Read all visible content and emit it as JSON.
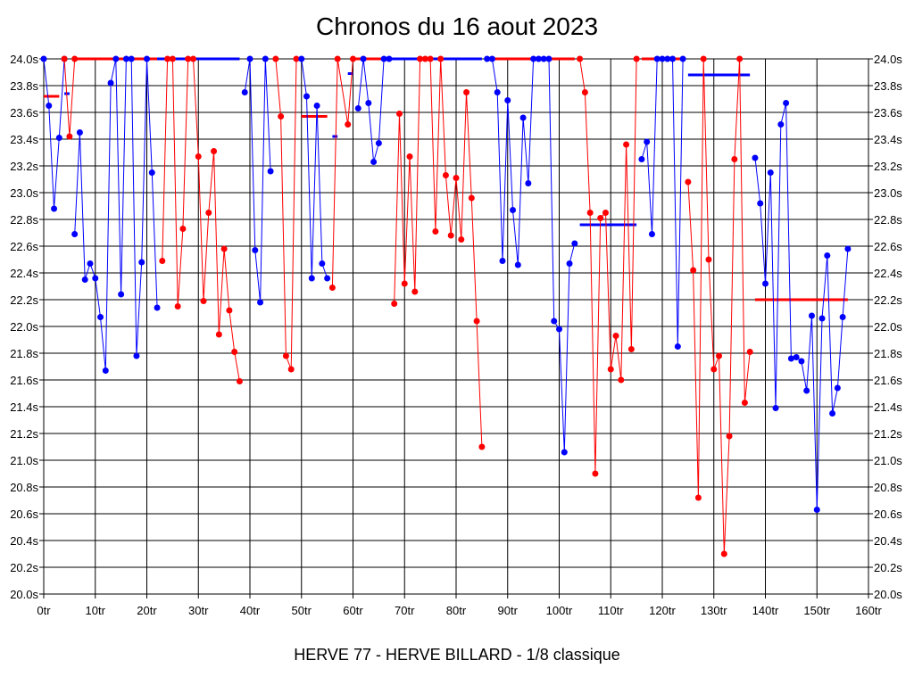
{
  "chart_data": {
    "type": "line",
    "title": "Chronos du 16 aout 2023",
    "caption": "HERVE 77 - HERVE BILLARD - 1/8 classique",
    "x_unit": "tr",
    "y_unit": "s",
    "xlim": [
      0,
      160
    ],
    "ylim": [
      20.0,
      24.0
    ],
    "x_ticks": [
      0,
      10,
      20,
      30,
      40,
      50,
      60,
      70,
      80,
      90,
      100,
      110,
      120,
      130,
      140,
      150,
      160
    ],
    "y_ticks": [
      20.0,
      20.2,
      20.4,
      20.6,
      20.8,
      21.0,
      21.2,
      21.4,
      21.6,
      21.8,
      22.0,
      22.2,
      22.4,
      22.6,
      22.8,
      23.0,
      23.2,
      23.4,
      23.6,
      23.8,
      24.0
    ],
    "x_tick_labels": [
      "0tr",
      "10tr",
      "20tr",
      "30tr",
      "40tr",
      "50tr",
      "60tr",
      "70tr",
      "80tr",
      "90tr",
      "100tr",
      "110tr",
      "120tr",
      "130tr",
      "140tr",
      "150tr",
      "160tr"
    ],
    "y_tick_labels": [
      "20.0s",
      "20.2s",
      "20.4s",
      "20.6s",
      "20.8s",
      "21.0s",
      "21.2s",
      "21.4s",
      "21.6s",
      "21.8s",
      "22.0s",
      "22.2s",
      "22.4s",
      "22.6s",
      "22.8s",
      "23.0s",
      "23.2s",
      "23.4s",
      "23.6s",
      "23.8s",
      "24.0s"
    ],
    "grid": true,
    "colors": {
      "blue": "#0000ff",
      "red": "#ff0000",
      "grid": "#000000"
    },
    "segments": [
      {
        "color": "blue",
        "points": [
          [
            0,
            24.0
          ],
          [
            1,
            23.65
          ],
          [
            2,
            22.88
          ],
          [
            3,
            23.41
          ],
          [
            4,
            24.0
          ]
        ]
      },
      {
        "color": "red",
        "points": [
          [
            4,
            24.0
          ],
          [
            5,
            23.42
          ],
          [
            6,
            24.0
          ]
        ]
      },
      {
        "color": "blue",
        "points": [
          [
            6,
            22.69
          ],
          [
            7,
            23.45
          ],
          [
            8,
            22.35
          ],
          [
            9,
            22.47
          ],
          [
            10,
            22.36
          ],
          [
            11,
            22.07
          ],
          [
            12,
            21.67
          ],
          [
            13,
            23.82
          ],
          [
            14,
            24.0
          ],
          [
            15,
            22.24
          ],
          [
            16,
            24.0
          ],
          [
            17,
            24.0
          ],
          [
            18,
            21.78
          ],
          [
            19,
            22.48
          ],
          [
            20,
            24.0
          ],
          [
            21,
            23.15
          ],
          [
            22,
            22.14
          ]
        ]
      },
      {
        "color": "red",
        "points": [
          [
            23,
            22.49
          ],
          [
            24,
            24.0
          ],
          [
            25,
            24.0
          ],
          [
            26,
            22.15
          ],
          [
            27,
            22.73
          ],
          [
            28,
            24.0
          ],
          [
            29,
            24.0
          ],
          [
            30,
            23.27
          ],
          [
            31,
            22.19
          ],
          [
            32,
            22.85
          ],
          [
            33,
            23.31
          ],
          [
            34,
            21.94
          ],
          [
            35,
            22.58
          ],
          [
            36,
            22.12
          ],
          [
            37,
            21.81
          ],
          [
            38,
            21.59
          ]
        ]
      },
      {
        "color": "blue",
        "points": [
          [
            39,
            23.75
          ],
          [
            40,
            24.0
          ],
          [
            41,
            22.57
          ],
          [
            42,
            22.18
          ],
          [
            43,
            24.0
          ],
          [
            44,
            23.16
          ]
        ]
      },
      {
        "color": "red",
        "points": [
          [
            45,
            24.0
          ],
          [
            46,
            23.57
          ],
          [
            47,
            21.78
          ],
          [
            48,
            21.68
          ],
          [
            49,
            24.0
          ]
        ]
      },
      {
        "color": "blue",
        "points": [
          [
            50,
            24.0
          ],
          [
            51,
            23.72
          ],
          [
            52,
            22.36
          ],
          [
            53,
            23.65
          ],
          [
            54,
            22.47
          ],
          [
            55,
            22.36
          ]
        ]
      },
      {
        "color": "red",
        "points": [
          [
            56,
            22.29
          ],
          [
            57,
            24.0
          ],
          [
            59,
            23.51
          ],
          [
            60,
            24.0
          ]
        ]
      },
      {
        "color": "blue",
        "points": [
          [
            61,
            23.63
          ],
          [
            62,
            24.0
          ],
          [
            63,
            23.67
          ],
          [
            64,
            23.23
          ],
          [
            65,
            23.37
          ],
          [
            66,
            24.0
          ],
          [
            67,
            24.0
          ]
        ]
      },
      {
        "color": "red",
        "points": [
          [
            68,
            22.17
          ],
          [
            69,
            23.59
          ],
          [
            70,
            22.32
          ],
          [
            71,
            23.27
          ],
          [
            72,
            22.26
          ],
          [
            73,
            24.0
          ],
          [
            74,
            24.0
          ],
          [
            75,
            24.0
          ],
          [
            76,
            22.71
          ],
          [
            77,
            24.0
          ],
          [
            78,
            23.13
          ],
          [
            79,
            22.68
          ],
          [
            80,
            23.11
          ],
          [
            81,
            22.65
          ],
          [
            82,
            23.75
          ],
          [
            83,
            22.96
          ],
          [
            84,
            22.04
          ],
          [
            85,
            21.1
          ]
        ]
      },
      {
        "color": "blue",
        "points": [
          [
            86,
            24.0
          ],
          [
            87,
            24.0
          ],
          [
            88,
            23.75
          ],
          [
            89,
            22.49
          ],
          [
            90,
            23.69
          ],
          [
            91,
            22.87
          ],
          [
            92,
            22.46
          ],
          [
            93,
            23.56
          ],
          [
            94,
            23.07
          ],
          [
            95,
            24.0
          ],
          [
            96,
            24.0
          ],
          [
            97,
            24.0
          ],
          [
            98,
            24.0
          ],
          [
            99,
            22.04
          ],
          [
            100,
            21.98
          ],
          [
            101,
            21.06
          ],
          [
            102,
            22.47
          ],
          [
            103,
            22.62
          ]
        ]
      },
      {
        "color": "red",
        "points": [
          [
            104,
            24.0
          ],
          [
            105,
            23.75
          ],
          [
            106,
            22.85
          ],
          [
            107,
            20.9
          ],
          [
            108,
            22.81
          ],
          [
            109,
            22.85
          ],
          [
            110,
            21.68
          ],
          [
            111,
            21.93
          ],
          [
            112,
            21.6
          ],
          [
            113,
            23.36
          ],
          [
            114,
            21.83
          ],
          [
            115,
            24.0
          ]
        ]
      },
      {
        "color": "blue",
        "points": [
          [
            116,
            23.25
          ],
          [
            117,
            23.38
          ],
          [
            118,
            22.69
          ],
          [
            119,
            24.0
          ],
          [
            120,
            24.0
          ],
          [
            121,
            24.0
          ],
          [
            122,
            24.0
          ],
          [
            123,
            21.85
          ],
          [
            124,
            24.0
          ]
        ]
      },
      {
        "color": "red",
        "points": [
          [
            125,
            23.08
          ],
          [
            126,
            22.42
          ],
          [
            127,
            20.72
          ],
          [
            128,
            24.0
          ],
          [
            129,
            22.5
          ],
          [
            130,
            21.68
          ],
          [
            131,
            21.78
          ],
          [
            132,
            20.3
          ],
          [
            133,
            21.18
          ],
          [
            134,
            23.25
          ],
          [
            135,
            24.0
          ],
          [
            136,
            21.43
          ],
          [
            137,
            21.81
          ]
        ]
      },
      {
        "color": "blue",
        "points": [
          [
            138,
            23.26
          ],
          [
            139,
            22.92
          ],
          [
            140,
            22.32
          ],
          [
            141,
            23.15
          ],
          [
            142,
            21.39
          ],
          [
            143,
            23.51
          ],
          [
            144,
            23.67
          ],
          [
            145,
            21.76
          ],
          [
            146,
            21.77
          ],
          [
            147,
            21.74
          ],
          [
            148,
            21.52
          ],
          [
            149,
            22.08
          ],
          [
            150,
            20.63
          ],
          [
            151,
            22.06
          ],
          [
            152,
            22.53
          ],
          [
            153,
            21.35
          ],
          [
            154,
            21.54
          ],
          [
            155,
            22.07
          ],
          [
            156,
            22.58
          ]
        ]
      }
    ],
    "average_lines": [
      {
        "color": "red",
        "x": [
          0,
          3
        ],
        "y": 23.72
      },
      {
        "color": "blue",
        "x": [
          4,
          5
        ],
        "y": 23.74
      },
      {
        "color": "red",
        "x": [
          6,
          22
        ],
        "y": 24.0
      },
      {
        "color": "blue",
        "x": [
          22,
          38
        ],
        "y": 24.0
      },
      {
        "color": "red",
        "x": [
          50,
          55
        ],
        "y": 23.57
      },
      {
        "color": "blue",
        "x": [
          56,
          57
        ],
        "y": 23.42
      },
      {
        "color": "blue",
        "x": [
          59,
          60
        ],
        "y": 23.89
      },
      {
        "color": "red",
        "x": [
          60,
          67
        ],
        "y": 24.0
      },
      {
        "color": "blue",
        "x": [
          67,
          85
        ],
        "y": 24.0
      },
      {
        "color": "red",
        "x": [
          87,
          103
        ],
        "y": 24.0
      },
      {
        "color": "blue",
        "x": [
          104,
          115
        ],
        "y": 22.76
      },
      {
        "color": "red",
        "x": [
          116,
          124
        ],
        "y": 24.0
      },
      {
        "color": "blue",
        "x": [
          125,
          137
        ],
        "y": 23.88
      },
      {
        "color": "red",
        "x": [
          138,
          156
        ],
        "y": 22.2
      }
    ]
  }
}
